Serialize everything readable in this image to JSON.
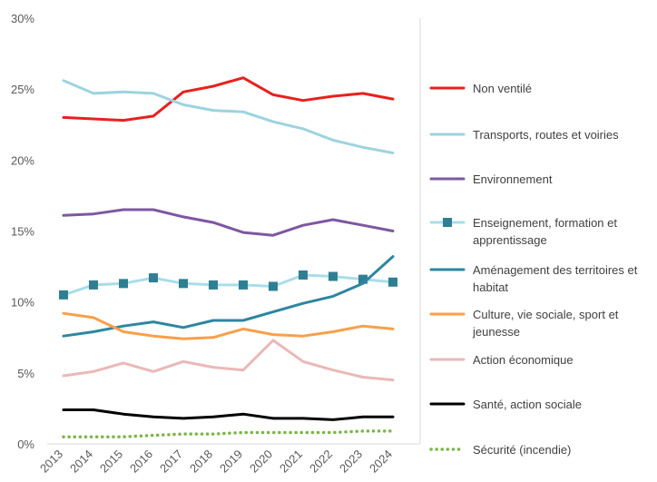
{
  "chart_data": {
    "type": "line",
    "title": "",
    "xlabel": "",
    "ylabel": "",
    "ylim": [
      0,
      30
    ],
    "y_ticks": [
      "0%",
      "5%",
      "10%",
      "15%",
      "20%",
      "25%",
      "30%"
    ],
    "grid": false,
    "legend_position": "right",
    "categories": [
      "2013",
      "2014",
      "2015",
      "2016",
      "2017",
      "2018",
      "2019",
      "2020",
      "2021",
      "2022",
      "2023",
      "2024"
    ],
    "series": [
      {
        "name": "Non ventilé",
        "color": "#e8211d",
        "style": "solid",
        "values": [
          23.0,
          22.9,
          22.8,
          23.1,
          24.8,
          25.2,
          25.8,
          24.6,
          24.2,
          24.5,
          24.7,
          24.3
        ]
      },
      {
        "name": "Transports, routes et voiries",
        "color": "#9dd3df",
        "style": "solid",
        "values": [
          25.6,
          24.7,
          24.8,
          24.7,
          23.9,
          23.5,
          23.4,
          22.7,
          22.2,
          21.4,
          20.9,
          20.5
        ]
      },
      {
        "name": "Environnement",
        "color": "#7e57a1",
        "style": "solid",
        "values": [
          16.1,
          16.2,
          16.5,
          16.5,
          16.0,
          15.6,
          14.9,
          14.7,
          15.4,
          15.8,
          15.4,
          15.0
        ]
      },
      {
        "name": "Enseignement, formation et apprentissage",
        "color": "#a9dde8",
        "style": "marker",
        "values": [
          10.5,
          11.2,
          11.3,
          11.7,
          11.3,
          11.2,
          11.2,
          11.1,
          11.9,
          11.8,
          11.6,
          11.4
        ]
      },
      {
        "name": "Aménagement des territoires et habitat",
        "color": "#2e86a0",
        "style": "solid",
        "values": [
          7.6,
          7.9,
          8.3,
          8.6,
          8.2,
          8.7,
          8.7,
          9.3,
          9.9,
          10.4,
          11.3,
          13.2
        ]
      },
      {
        "name": "Culture, vie sociale, sport et jeunesse",
        "color": "#f7a04a",
        "style": "solid",
        "values": [
          9.2,
          8.9,
          7.9,
          7.6,
          7.4,
          7.5,
          8.1,
          7.7,
          7.6,
          7.9,
          8.3,
          8.1
        ]
      },
      {
        "name": "Action économique",
        "color": "#eab8b8",
        "style": "solid",
        "values": [
          4.8,
          5.1,
          5.7,
          5.1,
          5.8,
          5.4,
          5.2,
          7.3,
          5.8,
          5.2,
          4.7,
          4.5
        ]
      },
      {
        "name": "Santé, action sociale",
        "color": "#000000",
        "style": "solid",
        "values": [
          2.4,
          2.4,
          2.1,
          1.9,
          1.8,
          1.9,
          2.1,
          1.8,
          1.8,
          1.7,
          1.9,
          1.9
        ]
      },
      {
        "name": "Sécurité (incendie)",
        "color": "#7db54a",
        "style": "dotted",
        "values": [
          0.5,
          0.5,
          0.5,
          0.6,
          0.7,
          0.7,
          0.8,
          0.8,
          0.8,
          0.8,
          0.9,
          0.9
        ]
      }
    ]
  }
}
